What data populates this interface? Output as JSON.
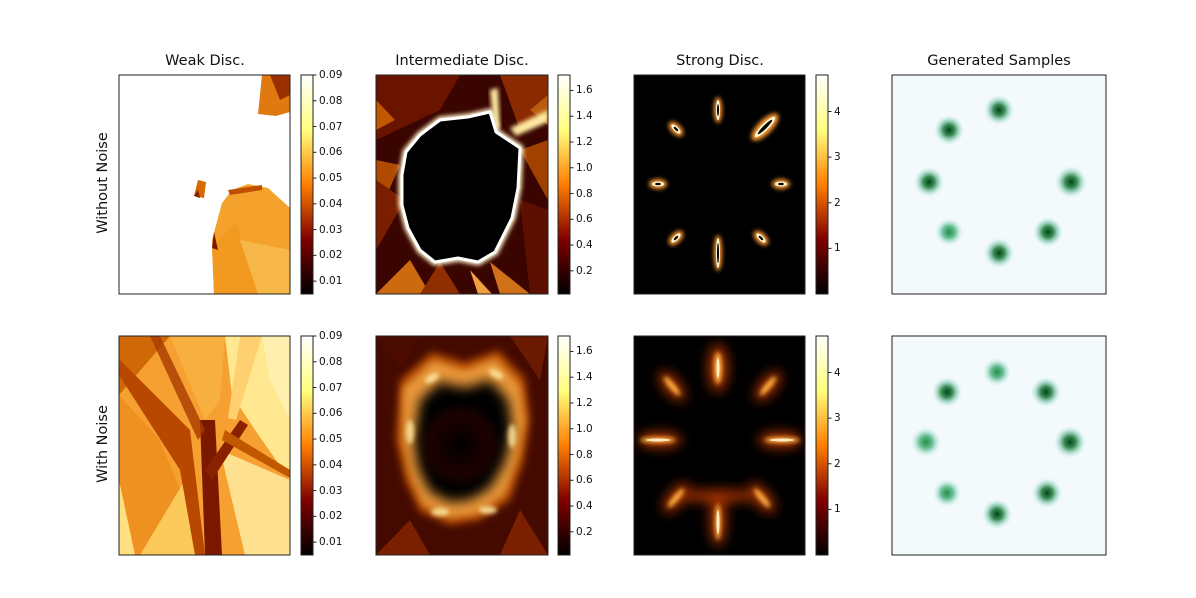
{
  "figure": {
    "column_titles": [
      "Weak Disc.",
      "Intermediate Disc.",
      "Strong Disc.",
      "Generated Samples"
    ],
    "row_labels": [
      "Without Noise",
      "With Noise"
    ]
  },
  "colors": {
    "heatmap_colormap": "afmhot",
    "samples_colormap": "BuGn"
  },
  "chart_data": [
    {
      "type": "heatmap",
      "row": "Without Noise",
      "column": "Weak Disc.",
      "colorbar": {
        "ticks": [
          "0.01",
          "0.02",
          "0.03",
          "0.04",
          "0.05",
          "0.06",
          "0.07",
          "0.08",
          "0.09"
        ],
        "range": [
          0.005,
          0.09
        ]
      }
    },
    {
      "type": "heatmap",
      "row": "Without Noise",
      "column": "Intermediate Disc.",
      "colorbar": {
        "ticks": [
          "0.2",
          "0.4",
          "0.6",
          "0.8",
          "1.0",
          "1.2",
          "1.4",
          "1.6"
        ],
        "range": [
          0.02,
          1.72
        ]
      }
    },
    {
      "type": "heatmap",
      "row": "Without Noise",
      "column": "Strong Disc.",
      "colorbar": {
        "ticks": [
          "1",
          "2",
          "3",
          "4"
        ],
        "range": [
          0.0,
          4.8
        ]
      }
    },
    {
      "type": "heatmap",
      "row": "Without Noise",
      "column": "Generated Samples",
      "mode_count": 8
    },
    {
      "type": "heatmap",
      "row": "With Noise",
      "column": "Weak Disc.",
      "colorbar": {
        "ticks": [
          "0.01",
          "0.02",
          "0.03",
          "0.04",
          "0.05",
          "0.06",
          "0.07",
          "0.08",
          "0.09"
        ],
        "range": [
          0.005,
          0.09
        ]
      }
    },
    {
      "type": "heatmap",
      "row": "With Noise",
      "column": "Intermediate Disc.",
      "colorbar": {
        "ticks": [
          "0.2",
          "0.4",
          "0.6",
          "0.8",
          "1.0",
          "1.2",
          "1.4",
          "1.6"
        ],
        "range": [
          0.02,
          1.72
        ]
      }
    },
    {
      "type": "heatmap",
      "row": "With Noise",
      "column": "Strong Disc.",
      "colorbar": {
        "ticks": [
          "1",
          "2",
          "3",
          "4"
        ],
        "range": [
          0.0,
          4.8
        ]
      }
    },
    {
      "type": "heatmap",
      "row": "With Noise",
      "column": "Generated Samples",
      "mode_count": 8
    }
  ]
}
